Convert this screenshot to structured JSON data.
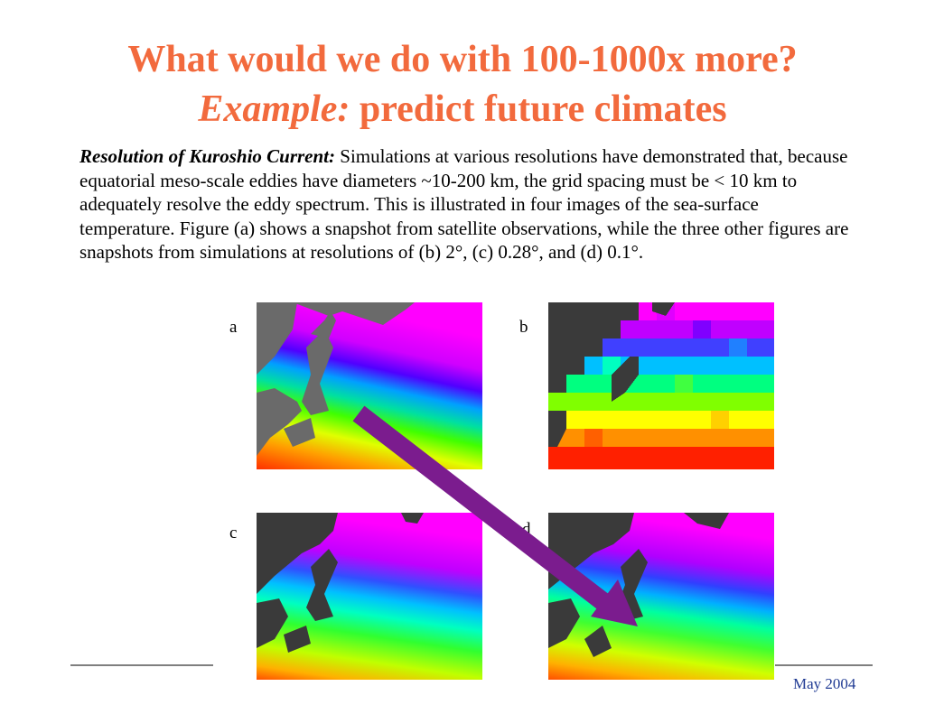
{
  "slide": {
    "title_line1": "What would we do with 100-1000x more?",
    "title_line2_italic": "Example:",
    "title_line2_rest": " predict future climates",
    "lead": "Resolution of Kuroshio Current:",
    "body": " Simulations at various resolutions have demonstrated that, because equatorial meso-scale eddies have diameters ~10-200 km, the grid spacing must be < 10 km to adequately resolve the eddy spectrum.  This is illustrated in four images of the sea-surface temperature.  Figure (a) shows a snapshot from satellite observations, while the three other figures are snapshots from simulations at resolutions of (b) 2°, (c) 0.28°, and (d) 0.1°.",
    "footer_date": "May 2004"
  },
  "panels": {
    "a": {
      "label": "a"
    },
    "b": {
      "label": "b"
    },
    "c": {
      "label": "c"
    },
    "d": {
      "label": "d"
    }
  },
  "colors": {
    "title": "#f26a3d",
    "arrow": "#7b1c8e",
    "land_a": "#6a6a6a",
    "land": "#3a3a3a",
    "footer": "#1f3a93"
  }
}
